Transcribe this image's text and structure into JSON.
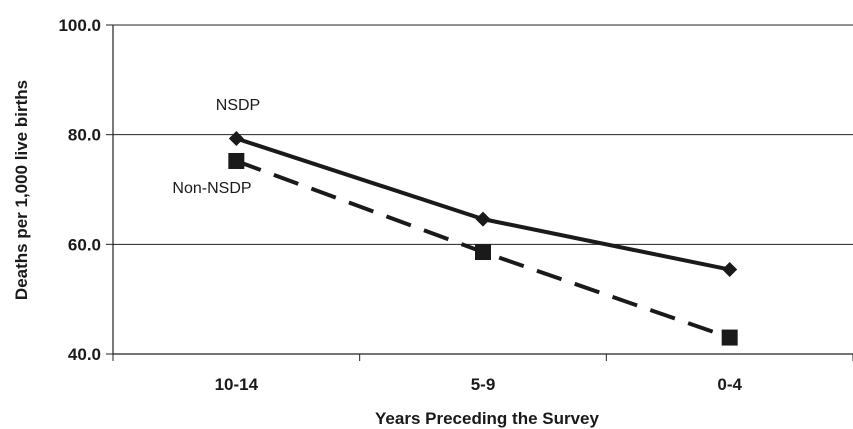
{
  "chart_data": {
    "type": "line",
    "xlabel": "Years Preceding the Survey",
    "ylabel": "Deaths per 1,000 live births",
    "categories": [
      "10-14",
      "5-9",
      "0-4"
    ],
    "ylim": [
      40,
      100
    ],
    "yticks": [
      "40.0",
      "60.0",
      "80.0",
      "100.0"
    ],
    "grid": true,
    "series": [
      {
        "name": "NSDP",
        "values": [
          79.3,
          64.6,
          55.4
        ],
        "marker": "diamond",
        "line_style": "solid",
        "color": "#1a1a1a"
      },
      {
        "name": "Non-NSDP",
        "values": [
          75.2,
          58.6,
          43.0
        ],
        "marker": "square",
        "line_style": "dashed",
        "color": "#1a1a1a"
      }
    ]
  }
}
